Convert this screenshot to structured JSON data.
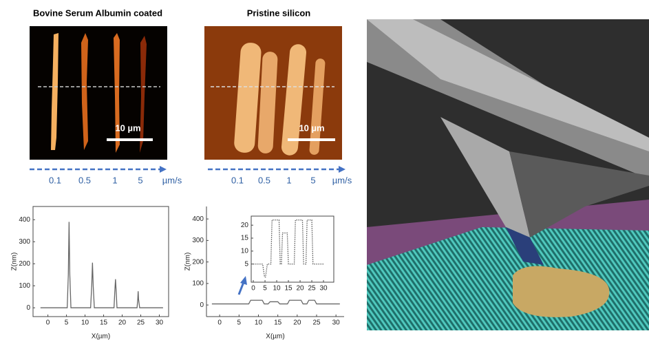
{
  "panels": [
    {
      "title": "Bovine Serum Albumin coated",
      "scale_bar": "10 µm",
      "speeds": [
        "0.1",
        "0.5",
        "1",
        "5"
      ],
      "unit": "µm/s"
    },
    {
      "title": "Pristine silicon",
      "scale_bar": "10 µm",
      "speeds": [
        "0.1",
        "0.5",
        "1",
        "5"
      ],
      "unit": "µm/s"
    }
  ],
  "chart_data": [
    {
      "type": "line",
      "x_label": "X(µm)",
      "y_label": "Z(nm)",
      "x": [
        -2,
        5.2,
        5.5,
        5.7,
        5.9,
        6.2,
        11.5,
        11.8,
        12,
        12.2,
        12.5,
        17.8,
        18,
        18.2,
        18.4,
        18.6,
        24,
        24.2,
        24.3,
        24.4,
        24.7,
        31
      ],
      "series": [
        {
          "color": "#666666",
          "values": [
            0,
            0,
            150,
            390,
            150,
            0,
            0,
            100,
            205,
            100,
            0,
            0,
            70,
            130,
            70,
            0,
            0,
            40,
            75,
            40,
            0,
            0
          ]
        }
      ],
      "xlim": [
        -4,
        32.5
      ],
      "ylim": [
        -40,
        460
      ],
      "xticks": [
        0,
        5,
        10,
        15,
        20,
        25,
        30
      ],
      "yticks": [
        0,
        100,
        200,
        300,
        400
      ]
    },
    {
      "type": "line",
      "x_label": "X(µm)",
      "y_label": "Z(nm)",
      "x": [
        -2,
        7.5,
        8,
        11,
        11.5,
        12.5,
        13,
        15,
        15.5,
        17.5,
        18,
        21,
        21.5,
        22.5,
        23,
        24.5,
        25,
        31
      ],
      "series": [
        {
          "color": "#666666",
          "values": [
            5,
            5,
            22,
            22,
            5,
            5,
            15,
            15,
            5,
            5,
            22,
            22,
            5,
            5,
            22,
            22,
            5,
            5
          ]
        }
      ],
      "xlim": [
        -3.4,
        32.1
      ],
      "ylim": [
        -54,
        458
      ],
      "xticks": [
        0,
        5,
        10,
        15,
        20,
        25,
        30
      ],
      "yticks": [
        0,
        100,
        200,
        300,
        400
      ]
    },
    {
      "type": "line",
      "x": [
        0,
        4,
        4.8,
        5.2,
        6,
        7.5,
        8,
        11,
        11.5,
        12,
        12.5,
        14.5,
        15,
        17.5,
        18,
        21,
        21.5,
        22.5,
        23,
        25,
        25.5,
        30
      ],
      "series": [
        {
          "color": "#555555",
          "values": [
            5,
            5,
            0,
            0,
            5,
            5,
            22,
            22,
            5,
            5,
            17,
            17,
            5,
            5,
            22,
            22,
            5,
            5,
            22,
            22,
            5,
            5
          ]
        }
      ],
      "xlim": [
        -0.9,
        34.4
      ],
      "ylim": [
        -2,
        23.5
      ],
      "xticks": [
        0,
        5,
        10,
        15,
        20,
        25,
        30
      ],
      "yticks": [
        5,
        10,
        15,
        20
      ]
    }
  ]
}
